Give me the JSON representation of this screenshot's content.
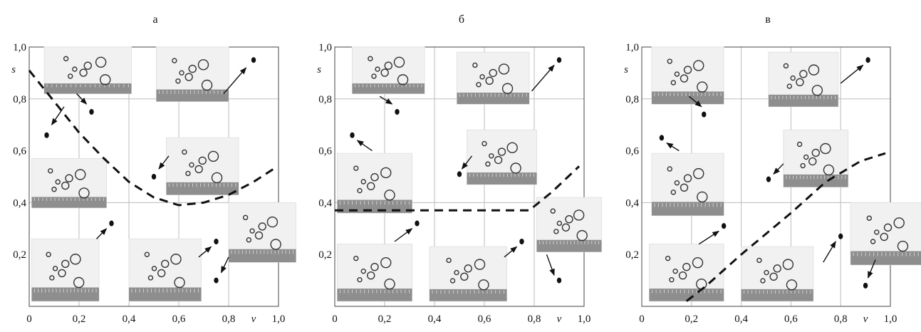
{
  "chart_data": [
    {
      "type": "scatter",
      "panel_label": "а",
      "xlabel": "v",
      "ylabel": "s",
      "xlim": [
        0,
        1.0
      ],
      "ylim": [
        0,
        1.0
      ],
      "x_tick_labels": [
        "0",
        "0,2",
        "0,4",
        "0,6",
        "0,8",
        "1,0"
      ],
      "y_tick_labels": [
        "0,2",
        "0,4",
        "0,6",
        "0,8",
        "1,0"
      ],
      "grid": true,
      "points": [
        {
          "x": 0.07,
          "y": 0.66
        },
        {
          "x": 0.25,
          "y": 0.75
        },
        {
          "x": 0.33,
          "y": 0.32
        },
        {
          "x": 0.5,
          "y": 0.5
        },
        {
          "x": 0.75,
          "y": 0.25
        },
        {
          "x": 0.75,
          "y": 0.1
        },
        {
          "x": 0.9,
          "y": 0.95
        }
      ],
      "boundary": {
        "style": "dashed",
        "shape": "parabola",
        "x": [
          0.0,
          0.1,
          0.2,
          0.3,
          0.4,
          0.5,
          0.6,
          0.7,
          0.8,
          0.9,
          0.98
        ],
        "y": [
          0.91,
          0.79,
          0.67,
          0.57,
          0.48,
          0.42,
          0.39,
          0.4,
          0.43,
          0.48,
          0.53
        ]
      }
    },
    {
      "type": "scatter",
      "panel_label": "б",
      "xlabel": "v",
      "ylabel": "s",
      "xlim": [
        0,
        1.0
      ],
      "ylim": [
        0,
        1.0
      ],
      "x_tick_labels": [
        "0",
        "0,2",
        "0,4",
        "0,6",
        "0,8",
        "1,0"
      ],
      "y_tick_labels": [
        "0,2",
        "0,4",
        "0,6",
        "0,8",
        "1,0"
      ],
      "grid": true,
      "points": [
        {
          "x": 0.07,
          "y": 0.66
        },
        {
          "x": 0.25,
          "y": 0.75
        },
        {
          "x": 0.33,
          "y": 0.32
        },
        {
          "x": 0.5,
          "y": 0.51
        },
        {
          "x": 0.75,
          "y": 0.25
        },
        {
          "x": 0.9,
          "y": 0.1
        },
        {
          "x": 0.9,
          "y": 0.95
        }
      ],
      "boundary": {
        "style": "dashed",
        "shape": "piecewise",
        "x": [
          0.0,
          0.78,
          0.87,
          0.98
        ],
        "y": [
          0.37,
          0.37,
          0.44,
          0.54
        ]
      }
    },
    {
      "type": "scatter",
      "panel_label": "в",
      "xlabel": "v",
      "ylabel": "s",
      "xlim": [
        0,
        1.0
      ],
      "ylim": [
        0,
        1.0
      ],
      "x_tick_labels": [
        "0",
        "0,2",
        "0,4",
        "0,6",
        "0,8",
        "1,0"
      ],
      "y_tick_labels": [
        "0,2",
        "0,4",
        "0,6",
        "0,8",
        "1,0"
      ],
      "grid": true,
      "points": [
        {
          "x": 0.08,
          "y": 0.65
        },
        {
          "x": 0.25,
          "y": 0.74
        },
        {
          "x": 0.33,
          "y": 0.31
        },
        {
          "x": 0.51,
          "y": 0.49
        },
        {
          "x": 0.8,
          "y": 0.27
        },
        {
          "x": 0.9,
          "y": 0.08
        },
        {
          "x": 0.91,
          "y": 0.95
        }
      ],
      "boundary": {
        "style": "dashed",
        "shape": "line",
        "x": [
          0.18,
          0.26,
          0.4,
          0.6,
          0.74,
          0.88,
          0.98
        ],
        "y": [
          0.02,
          0.08,
          0.2,
          0.36,
          0.48,
          0.56,
          0.59
        ]
      }
    }
  ]
}
